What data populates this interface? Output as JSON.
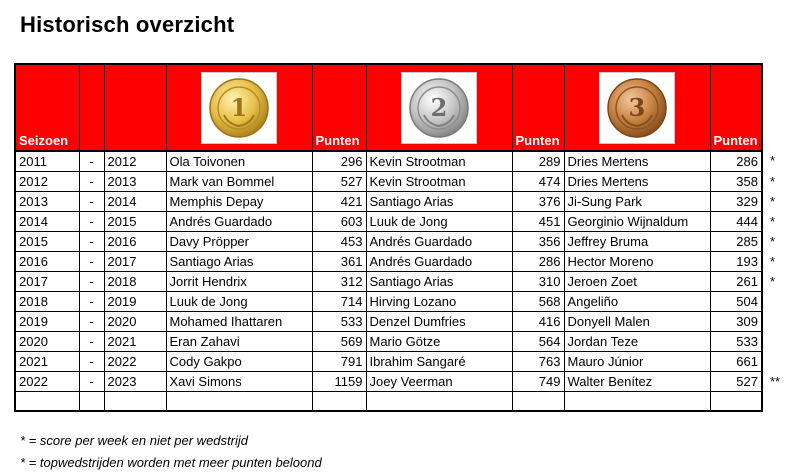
{
  "title": "Historisch overzicht",
  "header": {
    "season_label": "Seizoen",
    "points_label": "Punten",
    "medals": [
      {
        "number": "1",
        "name": "gold-medal-icon",
        "color": "#e8c14f"
      },
      {
        "number": "2",
        "name": "silver-medal-icon",
        "color": "#bdbdbd"
      },
      {
        "number": "3",
        "name": "bronze-medal-icon",
        "color": "#c8814a"
      }
    ]
  },
  "rows": [
    {
      "from": "2011",
      "dash": "-",
      "to": "2012",
      "p1": "Ola Toivonen",
      "s1": "296",
      "p2": "Kevin Strootman",
      "s2": "289",
      "p3": "Dries Mertens",
      "s3": "286",
      "note": "*"
    },
    {
      "from": "2012",
      "dash": "-",
      "to": "2013",
      "p1": "Mark van Bommel",
      "s1": "527",
      "p2": "Kevin Strootman",
      "s2": "474",
      "p3": "Dries Mertens",
      "s3": "358",
      "note": "*"
    },
    {
      "from": "2013",
      "dash": "-",
      "to": "2014",
      "p1": "Memphis Depay",
      "s1": "421",
      "p2": "Santiago Arias",
      "s2": "376",
      "p3": "Ji-Sung Park",
      "s3": "329",
      "note": "*"
    },
    {
      "from": "2014",
      "dash": "-",
      "to": "2015",
      "p1": "Andrés Guardado",
      "s1": "603",
      "p2": "Luuk de Jong",
      "s2": "451",
      "p3": "Georginio Wijnaldum",
      "s3": "444",
      "note": "*"
    },
    {
      "from": "2015",
      "dash": "-",
      "to": "2016",
      "p1": "Davy Pröpper",
      "s1": "453",
      "p2": "Andrés Guardado",
      "s2": "356",
      "p3": "Jeffrey Bruma",
      "s3": "285",
      "note": "*"
    },
    {
      "from": "2016",
      "dash": "-",
      "to": "2017",
      "p1": "Santiago Arias",
      "s1": "361",
      "p2": "Andrés Guardado",
      "s2": "286",
      "p3": "Hector Moreno",
      "s3": "193",
      "note": "*"
    },
    {
      "from": "2017",
      "dash": "-",
      "to": "2018",
      "p1": "Jorrit Hendrix",
      "s1": "312",
      "p2": "Santiago Arias",
      "s2": "310",
      "p3": "Jeroen Zoet",
      "s3": "261",
      "note": "*"
    },
    {
      "from": "2018",
      "dash": "-",
      "to": "2019",
      "p1": "Luuk de Jong",
      "s1": "714",
      "p2": "Hirving Lozano",
      "s2": "568",
      "p3": "Angeliño",
      "s3": "504",
      "note": ""
    },
    {
      "from": "2019",
      "dash": "-",
      "to": "2020",
      "p1": "Mohamed Ihattaren",
      "s1": "533",
      "p2": "Denzel Dumfries",
      "s2": "416",
      "p3": "Donyell Malen",
      "s3": "309",
      "note": ""
    },
    {
      "from": "2020",
      "dash": "-",
      "to": "2021",
      "p1": "Eran Zahavi",
      "s1": "569",
      "p2": "Mario Götze",
      "s2": "564",
      "p3": "Jordan Teze",
      "s3": "533",
      "note": ""
    },
    {
      "from": "2021",
      "dash": "-",
      "to": "2022",
      "p1": "Cody Gakpo",
      "s1": "791",
      "p2": "Ibrahim Sangaré",
      "s2": "763",
      "p3": "Mauro Júnior",
      "s3": "661",
      "note": ""
    },
    {
      "from": "2022",
      "dash": "-",
      "to": "2023",
      "p1": "Xavi Simons",
      "s1": "1159",
      "p2": "Joey Veerman",
      "s2": "749",
      "p3": "Walter Benítez",
      "s3": "527",
      "note": "**"
    }
  ],
  "footnotes": [
    "* = score per week en niet per wedstrijd",
    "* = topwedstrijden worden met meer punten beloond"
  ]
}
